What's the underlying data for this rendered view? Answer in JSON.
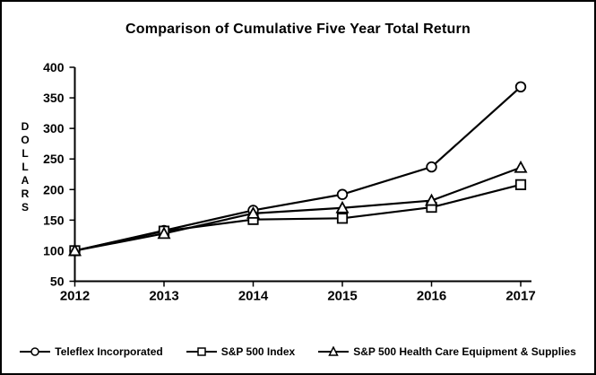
{
  "chart_data": {
    "type": "line",
    "title": "Comparison of Cumulative Five Year Total Return",
    "ylabel": "DOLLARS",
    "ylabel_orientation": "vertical-stacked",
    "xlabel": "",
    "categories": [
      "2012",
      "2013",
      "2014",
      "2015",
      "2016",
      "2017"
    ],
    "series": [
      {
        "name": "Teleflex Incorporated",
        "marker": "circle",
        "values": [
          100,
          133,
          166,
          192,
          237,
          368
        ]
      },
      {
        "name": "S&P 500 Index",
        "marker": "square",
        "values": [
          100,
          132,
          151,
          153,
          171,
          208
        ]
      },
      {
        "name": "S&P 500 Health Care Equipment & Supplies",
        "marker": "triangle",
        "values": [
          100,
          128,
          161,
          170,
          182,
          236
        ]
      }
    ],
    "ylim": [
      50,
      400
    ],
    "y_ticks": [
      50,
      100,
      150,
      200,
      250,
      300,
      350,
      400
    ],
    "grid": false,
    "legend_position": "bottom",
    "line_color": "#000000",
    "marker_fill": "#ffffff",
    "text_color": "#000000",
    "background": "#ffffff",
    "border_color": "#000000"
  }
}
